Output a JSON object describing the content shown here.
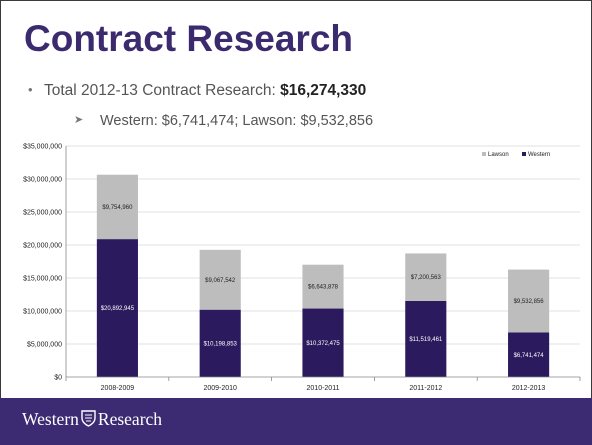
{
  "slide": {
    "title": "Contract Research",
    "bullet_label": "Total 2012-13 Contract Research: ",
    "bullet_value": "$16,274,330",
    "sub_bullet": "Western: $6,741,474; Lawson: $9,532,856",
    "footer_brand_left": "Western",
    "footer_brand_right": "Research"
  },
  "chart_data": {
    "type": "bar",
    "stacked": true,
    "categories": [
      "2008-2009",
      "2009-2010",
      "2010-2011",
      "2011-2012",
      "2012-2013"
    ],
    "series": [
      {
        "name": "Western",
        "color": "#2b1a5e",
        "values": [
          20892945,
          10198853,
          10372475,
          11519461,
          6741474
        ],
        "labels": [
          "$20,892,945",
          "$10,198,853",
          "$10,372,475",
          "$11,519,461",
          "$6,741,474"
        ]
      },
      {
        "name": "Lawson",
        "color": "#bdbdbd",
        "values": [
          9754960,
          9067542,
          6643878,
          7200563,
          9532856
        ],
        "labels": [
          "$9,754,960",
          "$9,067,542",
          "$6,643,878",
          "$7,200,563",
          "$9,532,856"
        ]
      }
    ],
    "ylim": [
      0,
      35000000
    ],
    "yticks": [
      "$0",
      "$5,000,000",
      "$10,000,000",
      "$15,000,000",
      "$20,000,000",
      "$25,000,000",
      "$30,000,000",
      "$35,000,000"
    ],
    "grid": true,
    "legend_position": "top-right"
  }
}
